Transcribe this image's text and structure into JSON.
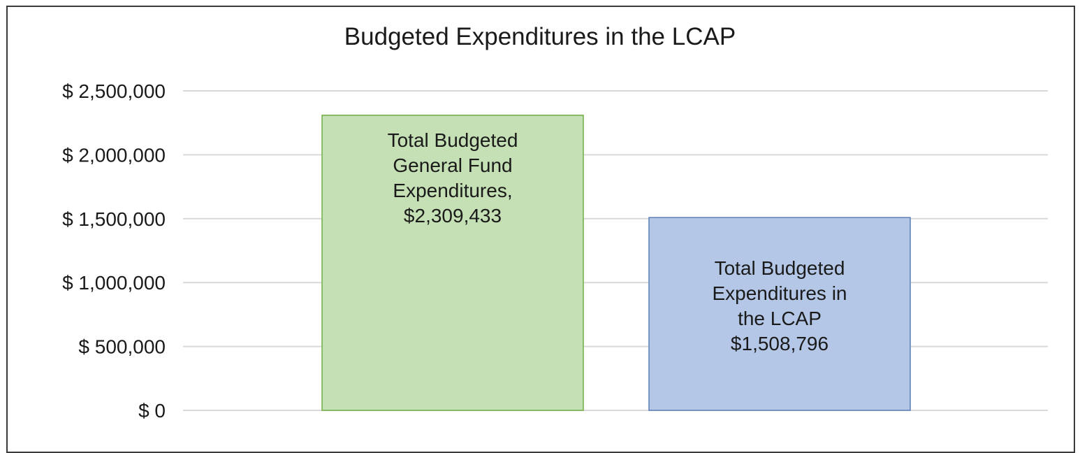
{
  "chart_data": {
    "type": "bar",
    "title": "Budgeted Expenditures in the LCAP",
    "xlabel": "",
    "ylabel": "",
    "ylim": [
      0,
      2500000
    ],
    "grid": true,
    "legend": "none",
    "y_ticks": [
      0,
      500000,
      1000000,
      1500000,
      2000000,
      2500000
    ],
    "y_tick_labels": [
      "$ 0",
      "$ 500,000",
      "$ 1,000,000",
      "$ 1,500,000",
      "$ 2,000,000",
      "$ 2,500,000"
    ],
    "categories": [
      "Total Budgeted General Fund Expenditures",
      "Total Budgeted Expenditures in the LCAP"
    ],
    "values": [
      2309433,
      1508796
    ],
    "data_labels": [
      [
        "Total Budgeted",
        "General Fund",
        "Expenditures,",
        "$2,309,433"
      ],
      [
        "Total Budgeted",
        "Expenditures in",
        "the LCAP",
        "$1,508,796"
      ]
    ],
    "colors": [
      "#c5e0b4",
      "#b4c7e7"
    ],
    "border_colors": [
      "#70ad47",
      "#5b7fb5"
    ]
  }
}
